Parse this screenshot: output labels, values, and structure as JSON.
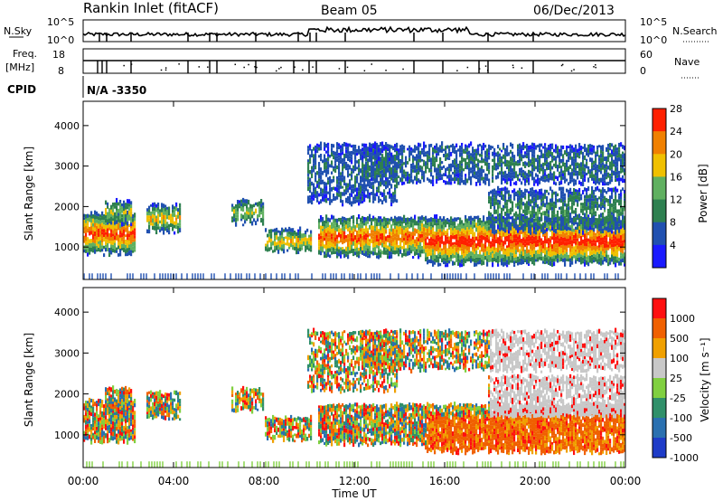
{
  "header": {
    "station": "Rankin Inlet (fitACF)",
    "beam": "Beam 05",
    "date": "06/Dec/2013"
  },
  "top_panels": {
    "nsky_label": "N.Sky",
    "nsky_ticks": [
      "10^5",
      "10^0"
    ],
    "nsearch_label": "N.Search",
    "nsearch_ticks": [
      "10^5",
      "10^0"
    ],
    "freq_label_1": "Freq.",
    "freq_label_2": "[MHz]",
    "freq_ticks": [
      "18",
      "8"
    ],
    "nave_label": "Nave",
    "nave_ticks": [
      "60",
      "0"
    ],
    "cpid_label": "CPID",
    "cpid_value": "N/A  -3350"
  },
  "chart_data": [
    {
      "type": "heatmap",
      "name": "power",
      "ylabel": "Slant Range [km]",
      "yticks": [
        "1000",
        "2000",
        "3000",
        "4000"
      ],
      "ylim": [
        200,
        4600
      ],
      "colorbar_label": "Power [dB]",
      "colorbar_ticks": [
        "4",
        "8",
        "12",
        "16",
        "20",
        "24",
        "28"
      ],
      "colors": [
        "#1a1aff",
        "#2050b0",
        "#2e8050",
        "#60b060",
        "#f0c000",
        "#f08000",
        "#ff2000"
      ]
    },
    {
      "type": "heatmap",
      "name": "velocity",
      "ylabel": "Slant Range [km]",
      "yticks": [
        "1000",
        "2000",
        "3000",
        "4000"
      ],
      "ylim": [
        200,
        4600
      ],
      "colorbar_label": "Velocity [m s⁻¹]",
      "colorbar_ticks": [
        "1000",
        "500",
        "100",
        "25",
        "-25",
        "-100",
        "-500",
        "-1000"
      ],
      "colors": [
        "#1e3cc8",
        "#2a70b0",
        "#30906a",
        "#80d040",
        "#c8c8c8",
        "#f0a000",
        "#f06000",
        "#ff1010"
      ]
    }
  ],
  "x_axis": {
    "ticks": [
      "00:00",
      "04:00",
      "08:00",
      "12:00",
      "16:00",
      "20:00",
      "00:00"
    ],
    "label": "Time UT"
  }
}
